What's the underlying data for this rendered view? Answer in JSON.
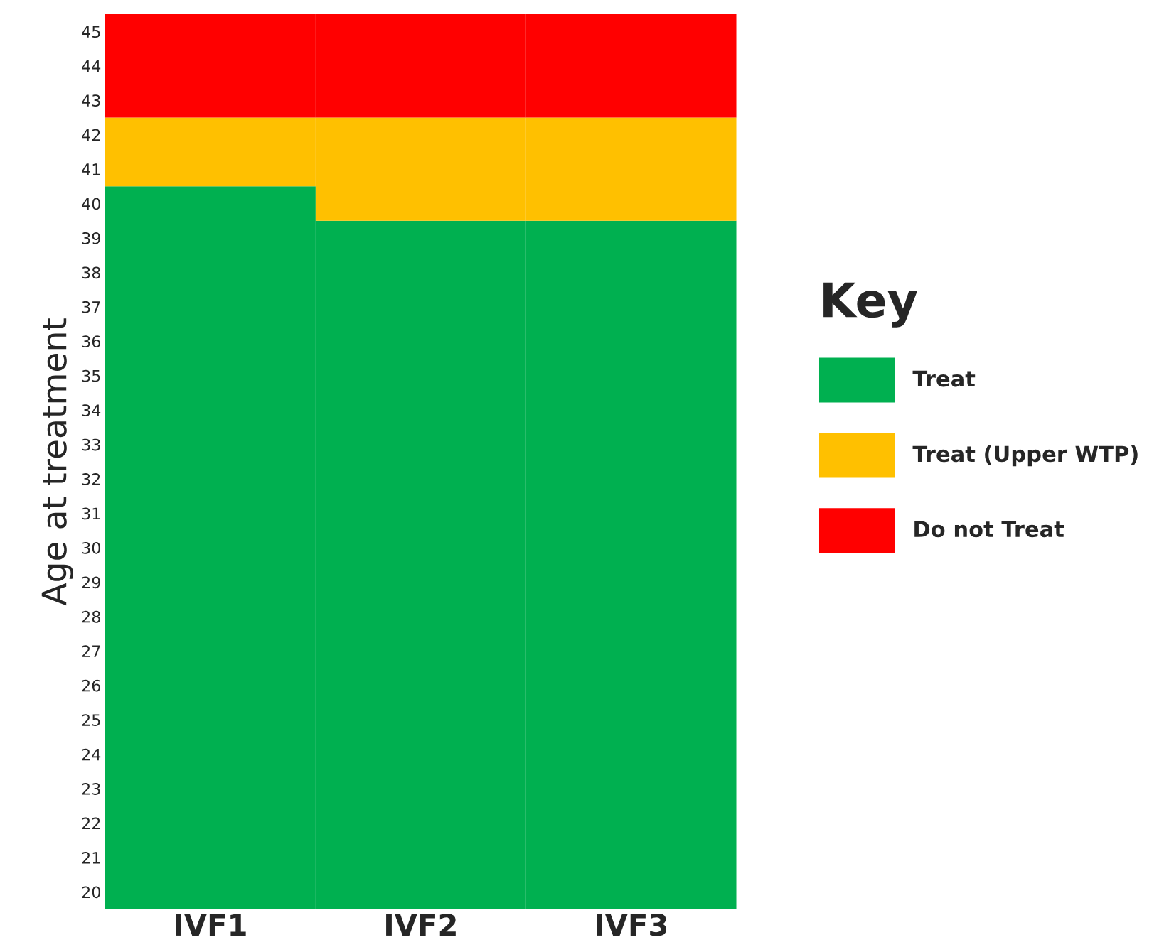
{
  "chart_data": {
    "type": "bar",
    "ylabel": "Age at treatment",
    "legend_title": "Key",
    "legend": "right",
    "categories": [
      "IVF1",
      "IVF2",
      "IVF3"
    ],
    "series": [
      {
        "name": "Treat",
        "color": "#00b050",
        "base": [
          19.5,
          19.5,
          19.5
        ],
        "values": [
          21,
          20,
          20
        ]
      },
      {
        "name": "Treat (Upper WTP)",
        "color": "#ffc000",
        "base": [
          40.5,
          39.5,
          39.5
        ],
        "values": [
          2,
          3,
          3
        ]
      },
      {
        "name": "Do not Treat",
        "color": "#ff0000",
        "base": [
          42.5,
          42.5,
          42.5
        ],
        "values": [
          3,
          3,
          3
        ]
      }
    ],
    "ylim": [
      19.5,
      45.5
    ],
    "yticks": [
      20,
      21,
      22,
      23,
      24,
      25,
      26,
      27,
      28,
      29,
      30,
      31,
      32,
      33,
      34,
      35,
      36,
      37,
      38,
      39,
      40,
      41,
      42,
      43,
      44,
      45
    ],
    "grid": false
  }
}
